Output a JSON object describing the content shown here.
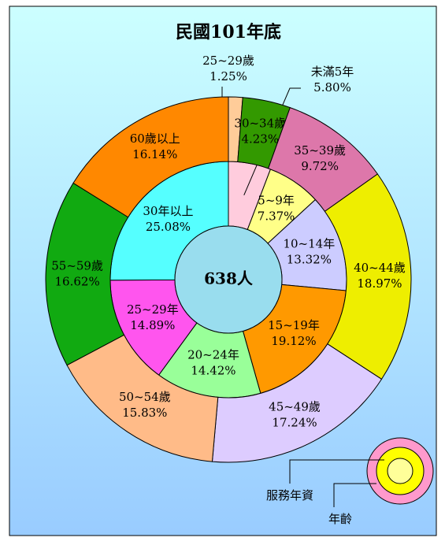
{
  "chart_data": {
    "type": "nested-donut",
    "title": "民國101年底",
    "center_label": "638人",
    "series": [
      {
        "name": "服務年資",
        "categories": [
          "未滿5年",
          "5~9年",
          "10~14年",
          "15~19年",
          "20~24年",
          "25~29年",
          "30年以上"
        ],
        "values": [
          5.8,
          7.37,
          13.32,
          19.12,
          14.42,
          14.89,
          25.08
        ],
        "value_labels": [
          "5.80%",
          "7.37%",
          "13.32%",
          "19.12%",
          "14.42%",
          "14.89%",
          "25.08%"
        ],
        "colors": [
          "#ffccdd",
          "#ffff88",
          "#ccccff",
          "#ff9900",
          "#99ff99",
          "#ff55ee",
          "#55ffff"
        ]
      },
      {
        "name": "年齡",
        "categories": [
          "25~29歲",
          "30~34歲",
          "35~39歲",
          "40~44歲",
          "45~49歲",
          "50~54歲",
          "55~59歲",
          "60歲以上"
        ],
        "values": [
          1.25,
          4.23,
          9.72,
          18.97,
          17.24,
          15.83,
          16.62,
          16.14
        ],
        "value_labels": [
          "1.25%",
          "4.23%",
          "9.72%",
          "18.97%",
          "17.24%",
          "15.83%",
          "16.62%",
          "16.14%"
        ],
        "colors": [
          "#ffcc99",
          "#339900",
          "#dd77aa",
          "#eeee00",
          "#ddccff",
          "#ffbb88",
          "#11aa11",
          "#ff8800"
        ]
      }
    ]
  }
}
